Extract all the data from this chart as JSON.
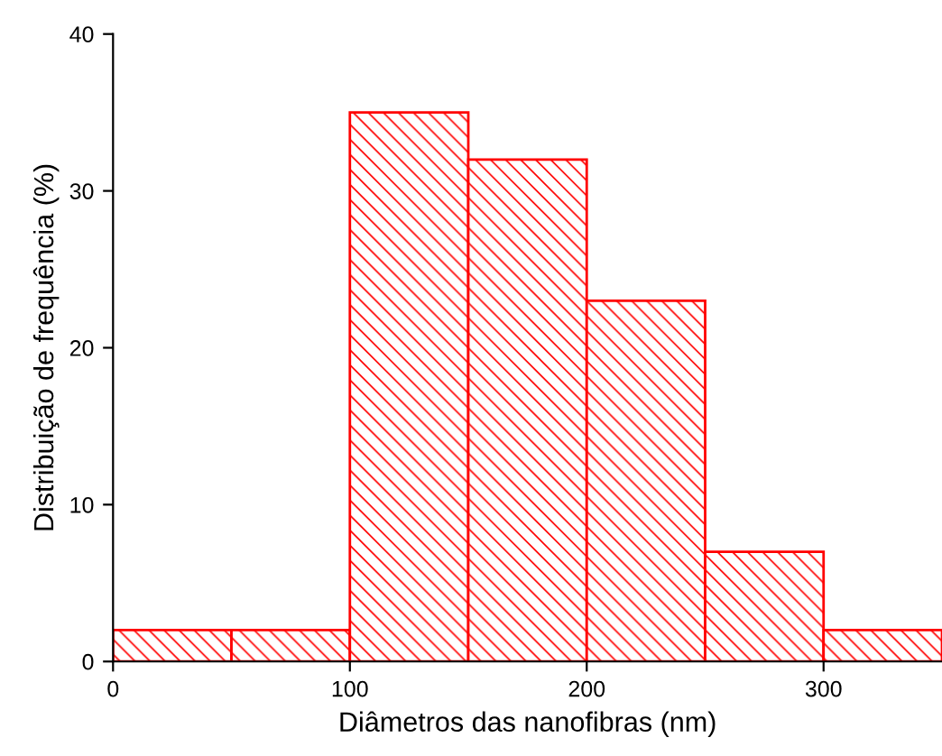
{
  "chart_data": {
    "type": "histogram",
    "xlabel": "Diâmetros das nanofibras (nm)",
    "ylabel": "Distribuição de frequência (%)",
    "bins": [
      0,
      50,
      100,
      150,
      200,
      250,
      300,
      350
    ],
    "values": [
      2,
      2,
      35,
      32,
      23,
      7,
      2
    ],
    "color": "#ff0000",
    "xlim": [
      0,
      350
    ],
    "xticks": [
      0,
      100,
      200,
      300
    ],
    "ylim": [
      0,
      40
    ],
    "yticks": [
      0,
      10,
      20,
      30,
      40
    ],
    "grid": false
  }
}
